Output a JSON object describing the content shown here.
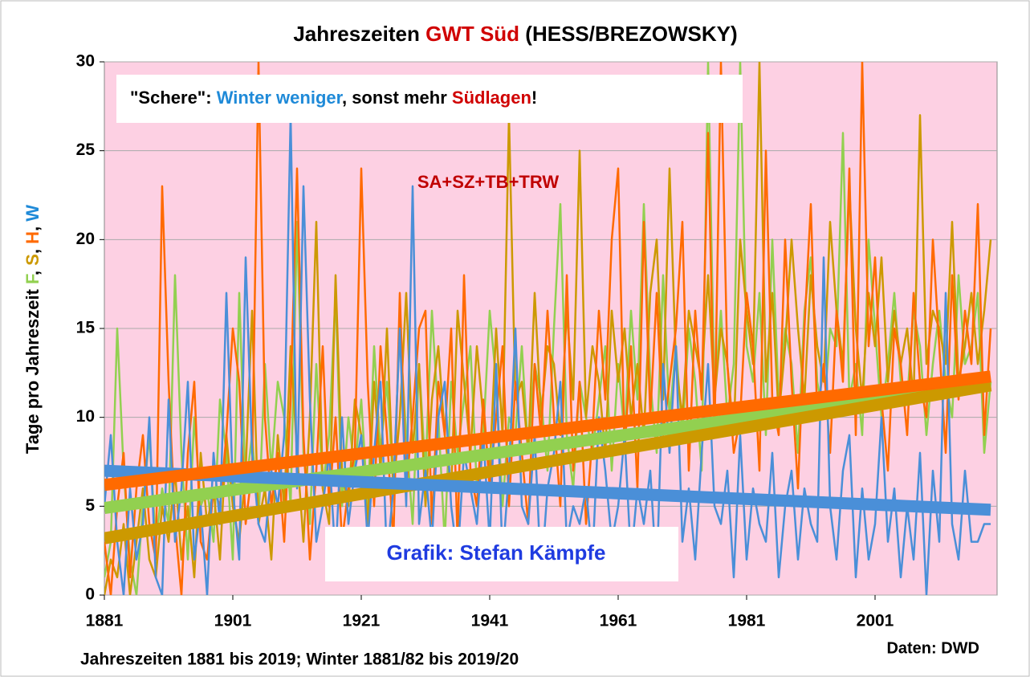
{
  "chart_data": {
    "type": "line",
    "title": {
      "part1": "Jahreszeiten ",
      "part2": "GWT Süd",
      "part3": " (HESS/BREZOWSKY)"
    },
    "y_label": {
      "text": "Tage pro Jahreszeit ",
      "f": "F",
      "s": "S",
      "h": "H",
      "w": "W",
      "sep": ", "
    },
    "annotation": {
      "a": "\"Schere\": ",
      "b": "Winter weniger",
      "c": ", sonst mehr ",
      "d": "Südlagen",
      "e": "!"
    },
    "subtitle": "SA+SZ+TB+TRW",
    "credit": "Grafik: Stefan Kämpfe",
    "footnote": "Jahreszeiten 1881 bis 2019; Winter 1881/82 bis 2019/20",
    "source": "Daten: DWD",
    "x": [
      1881,
      1882,
      1883,
      1884,
      1885,
      1886,
      1887,
      1888,
      1889,
      1890,
      1891,
      1892,
      1893,
      1894,
      1895,
      1896,
      1897,
      1898,
      1899,
      1900,
      1901,
      1902,
      1903,
      1904,
      1905,
      1906,
      1907,
      1908,
      1909,
      1910,
      1911,
      1912,
      1913,
      1914,
      1915,
      1916,
      1917,
      1918,
      1919,
      1920,
      1921,
      1922,
      1923,
      1924,
      1925,
      1926,
      1927,
      1928,
      1929,
      1930,
      1931,
      1932,
      1933,
      1934,
      1935,
      1936,
      1937,
      1938,
      1939,
      1940,
      1941,
      1942,
      1943,
      1944,
      1945,
      1946,
      1947,
      1948,
      1949,
      1950,
      1951,
      1952,
      1953,
      1954,
      1955,
      1956,
      1957,
      1958,
      1959,
      1960,
      1961,
      1962,
      1963,
      1964,
      1965,
      1966,
      1967,
      1968,
      1969,
      1970,
      1971,
      1972,
      1973,
      1974,
      1975,
      1976,
      1977,
      1978,
      1979,
      1980,
      1981,
      1982,
      1983,
      1984,
      1985,
      1986,
      1987,
      1988,
      1989,
      1990,
      1991,
      1992,
      1993,
      1994,
      1995,
      1996,
      1997,
      1998,
      1999,
      2000,
      2001,
      2002,
      2003,
      2004,
      2005,
      2006,
      2007,
      2008,
      2009,
      2010,
      2011,
      2012,
      2013,
      2014,
      2015,
      2016,
      2017,
      2018,
      2019
    ],
    "series": [
      {
        "color": "#92d050",
        "values": [
          1,
          3,
          15,
          7,
          2,
          0,
          5,
          9,
          3,
          6,
          4,
          18,
          8,
          2,
          10,
          5,
          6,
          3,
          11,
          8,
          2,
          17,
          6,
          9,
          4,
          13,
          7,
          12,
          10,
          5,
          21,
          8,
          4,
          13,
          6,
          9,
          17,
          5,
          10,
          7,
          11,
          5,
          14,
          8,
          12,
          6,
          15,
          9,
          4,
          13,
          7,
          16,
          10,
          3,
          12,
          8,
          11,
          14,
          6,
          9,
          16,
          12,
          5,
          10,
          9,
          14,
          8,
          13,
          11,
          7,
          15,
          22,
          9,
          6,
          12,
          10,
          8,
          11,
          14,
          7,
          13,
          9,
          16,
          11,
          22,
          12,
          8,
          18,
          10,
          14,
          9,
          15,
          12,
          7,
          30,
          11,
          16,
          10,
          13,
          30,
          14,
          12,
          17,
          9,
          20,
          11,
          15,
          13,
          8,
          16,
          19,
          12,
          10,
          15,
          14,
          26,
          11,
          13,
          9,
          20,
          15,
          10,
          13,
          17,
          12,
          11,
          16,
          14,
          9,
          13,
          16,
          12,
          10,
          18,
          13,
          14,
          17,
          8,
          12
        ]
      },
      {
        "color": "#cc9900",
        "values": [
          0,
          2,
          1,
          4,
          0,
          3,
          6,
          2,
          1,
          5,
          3,
          7,
          2,
          5,
          1,
          8,
          4,
          6,
          2,
          9,
          5,
          3,
          7,
          16,
          4,
          6,
          2,
          9,
          5,
          14,
          8,
          3,
          10,
          21,
          6,
          4,
          18,
          7,
          5,
          11,
          9,
          4,
          12,
          7,
          15,
          6,
          10,
          17,
          8,
          13,
          5,
          11,
          14,
          9,
          6,
          16,
          12,
          8,
          14,
          10,
          7,
          15,
          9,
          27,
          11,
          12,
          8,
          17,
          10,
          14,
          13,
          9,
          16,
          11,
          25,
          10,
          14,
          12,
          8,
          16,
          12,
          15,
          10,
          13,
          9,
          17,
          20,
          11,
          24,
          13,
          10,
          16,
          14,
          12,
          18,
          11,
          15,
          13,
          9,
          20,
          16,
          13,
          30,
          12,
          17,
          10,
          14,
          20,
          15,
          11,
          18,
          14,
          12,
          21,
          16,
          13,
          23,
          15,
          11,
          17,
          14,
          19,
          12,
          16,
          13,
          15,
          11,
          27,
          13,
          16,
          15,
          13,
          21,
          12,
          14,
          17,
          13,
          16,
          20
        ]
      },
      {
        "color": "#ff6a00",
        "values": [
          3,
          0,
          5,
          8,
          1,
          6,
          9,
          4,
          2,
          23,
          12,
          4,
          0,
          8,
          12,
          3,
          2,
          6,
          5,
          9,
          15,
          12,
          4,
          7,
          30,
          10,
          5,
          8,
          3,
          11,
          24,
          9,
          2,
          7,
          14,
          5,
          10,
          3,
          6,
          8,
          24,
          12,
          5,
          14,
          9,
          3,
          17,
          6,
          10,
          15,
          16,
          4,
          12,
          9,
          15,
          3,
          18,
          7,
          5,
          11,
          6,
          10,
          14,
          5,
          12,
          8,
          4,
          13,
          9,
          16,
          10,
          5,
          18,
          7,
          12,
          4,
          9,
          16,
          11,
          20,
          24,
          8,
          14,
          6,
          21,
          10,
          17,
          9,
          12,
          15,
          21,
          7,
          16,
          11,
          26,
          9,
          30,
          13,
          8,
          10,
          17,
          14,
          7,
          25,
          11,
          9,
          20,
          12,
          6,
          15,
          22,
          10,
          13,
          8,
          16,
          12,
          24,
          9,
          30,
          14,
          19,
          11,
          7,
          15,
          13,
          9,
          17,
          12,
          10,
          20,
          14,
          8,
          18,
          11,
          16,
          13,
          22,
          9,
          15
        ]
      },
      {
        "color": "#4a8fd8",
        "values": [
          5,
          9,
          3,
          0,
          6,
          2,
          4,
          10,
          1,
          0,
          11,
          3,
          6,
          12,
          2,
          5,
          0,
          8,
          4,
          17,
          6,
          2,
          19,
          8,
          4,
          3,
          7,
          5,
          9,
          27,
          6,
          23,
          11,
          3,
          5,
          8,
          2,
          10,
          4,
          7,
          9,
          3,
          8,
          12,
          2,
          6,
          15,
          5,
          23,
          4,
          7,
          3,
          10,
          12,
          5,
          2,
          8,
          6,
          4,
          9,
          3,
          13,
          2,
          7,
          15,
          5,
          4,
          9,
          1,
          6,
          8,
          12,
          3,
          5,
          4,
          6,
          2,
          10,
          7,
          3,
          5,
          9,
          2,
          6,
          4,
          7,
          1,
          13,
          8,
          14,
          3,
          6,
          2,
          8,
          13,
          5,
          4,
          7,
          1,
          9,
          2,
          6,
          4,
          3,
          8,
          1,
          5,
          7,
          2,
          6,
          4,
          3,
          19,
          5,
          2,
          7,
          9,
          1,
          6,
          2,
          4,
          10,
          3,
          6,
          1,
          5,
          2,
          8,
          0,
          7,
          3,
          17,
          4,
          2,
          7,
          3,
          3,
          4,
          4
        ]
      }
    ],
    "trend_lines": [
      {
        "color": "#92d050",
        "x": [
          1881,
          2019
        ],
        "values": [
          4.9,
          11.9
        ]
      },
      {
        "color": "#cc9900",
        "x": [
          1881,
          2019
        ],
        "values": [
          3.2,
          11.8
        ]
      },
      {
        "color": "#4a8fd8",
        "x": [
          1881,
          2019
        ],
        "values": [
          7.0,
          4.8
        ]
      },
      {
        "color": "#ff6a00",
        "x": [
          1881,
          2019
        ],
        "values": [
          6.2,
          12.3
        ]
      }
    ],
    "xlim": [
      1881,
      2020
    ],
    "xticks": [
      1881,
      1901,
      1921,
      1941,
      1961,
      1981,
      2001
    ],
    "ylim": [
      0,
      30
    ],
    "yticks": [
      0,
      5,
      10,
      15,
      20,
      25,
      30
    ],
    "grid": true
  }
}
